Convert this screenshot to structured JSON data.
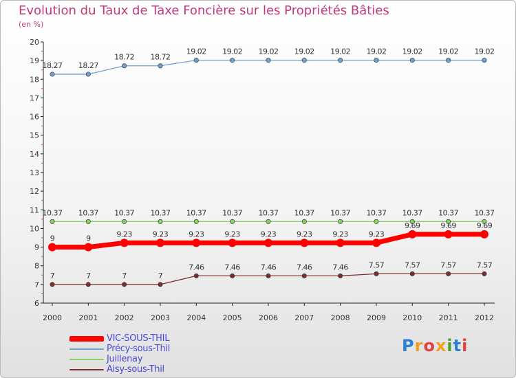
{
  "chart_data": {
    "type": "line",
    "title": "Evolution du Taux de Taxe Foncière sur les Propriétés Bâties",
    "subtitle": "(en %)",
    "x": [
      "2000",
      "2001",
      "2002",
      "2003",
      "2004",
      "2005",
      "2006",
      "2007",
      "2008",
      "2009",
      "2010",
      "2011",
      "2012"
    ],
    "ylim": [
      6,
      20
    ],
    "yticks": [
      "6",
      "7",
      "8",
      "9",
      "10",
      "11",
      "12",
      "13",
      "14",
      "15",
      "16",
      "17",
      "18",
      "19",
      "20"
    ],
    "grid": false,
    "legend_position": "bottom-left",
    "series": [
      {
        "name": "VIC-SOUS-THIL",
        "color": "#ff0000",
        "highlight": true,
        "values": [
          9,
          9,
          9.23,
          9.23,
          9.23,
          9.23,
          9.23,
          9.23,
          9.23,
          9.23,
          9.69,
          9.69,
          9.69
        ],
        "labels": [
          "9",
          "9",
          "9.23",
          "9.23",
          "9.23",
          "9.23",
          "9.23",
          "9.23",
          "9.23",
          "9.23",
          "9.69",
          "9.69",
          "9.69"
        ]
      },
      {
        "name": "Précy-sous-Thil",
        "color": "#6fa0cf",
        "highlight": false,
        "values": [
          18.27,
          18.27,
          18.72,
          18.72,
          19.02,
          19.02,
          19.02,
          19.02,
          19.02,
          19.02,
          19.02,
          19.02,
          19.02
        ],
        "labels": [
          "18.27",
          "18.27",
          "18.72",
          "18.72",
          "19.02",
          "19.02",
          "19.02",
          "19.02",
          "19.02",
          "19.02",
          "19.02",
          "19.02",
          "19.02"
        ]
      },
      {
        "name": "Juillenay",
        "color": "#88d060",
        "highlight": false,
        "values": [
          10.37,
          10.37,
          10.37,
          10.37,
          10.37,
          10.37,
          10.37,
          10.37,
          10.37,
          10.37,
          10.37,
          10.37,
          10.37
        ],
        "labels": [
          "10.37",
          "10.37",
          "10.37",
          "10.37",
          "10.37",
          "10.37",
          "10.37",
          "10.37",
          "10.37",
          "10.37",
          "10.37",
          "10.37",
          "10.37"
        ]
      },
      {
        "name": "Aisy-sous-Thil",
        "color": "#7a2e2e",
        "highlight": false,
        "values": [
          7,
          7,
          7,
          7,
          7.46,
          7.46,
          7.46,
          7.46,
          7.46,
          7.57,
          7.57,
          7.57,
          7.57
        ],
        "labels": [
          "7",
          "7",
          "7",
          "7",
          "7.46",
          "7.46",
          "7.46",
          "7.46",
          "7.46",
          "7.57",
          "7.57",
          "7.57",
          "7.57"
        ]
      }
    ]
  },
  "logo": {
    "text": "Proxiti"
  }
}
